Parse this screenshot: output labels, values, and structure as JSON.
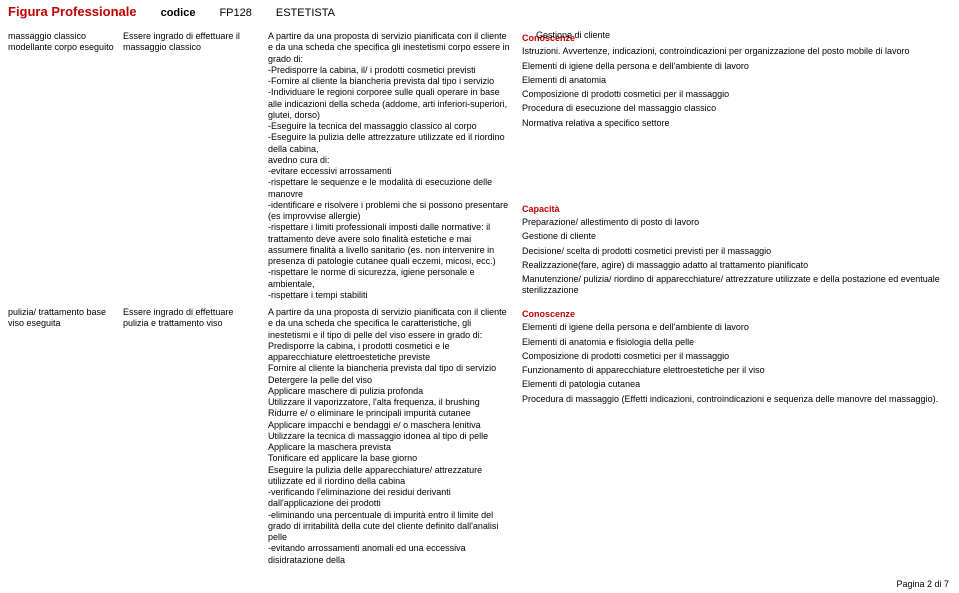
{
  "header": {
    "title": "Figura Professionale",
    "codice_label": "codice",
    "codice_value": "FP128",
    "name": "ESTETISTA"
  },
  "top_right": "Gestione di cliente",
  "rows": [
    {
      "col1": "massaggio classico modellante corpo eseguito",
      "col2": "Essere ingrado di effettuare il massaggio classico",
      "col3": "A partire da una proposta di servizio pianificata con il cliente e da una scheda che specifica gli inestetismi corpo essere in grado di:\n-Predisporre la cabina, il/ i prodotti cosmetici previsti\n-Fornire al cliente la biancheria prevista dal tipo i servizio\n-Individuare le regioni corporee sulle quali operare in base alle indicazioni della scheda (addome, arti inferiori-superiori, glutei, dorso)\n-Eseguire la tecnica del massaggio classico al corpo\n-Eseguire la pulizia delle attrezzature utilizzate ed il riordino della cabina,\navedno cura di:\n-evitare eccessivi arrossamenti\n-rispettare le sequenze e le modalità di esecuzione delle manovre\n-identificare e risolvere i problemi che si possono presentare (es improvvise allergie)\n-rispettare i limiti professionali imposti dalle normative: il trattamento deve avere solo finalità estetiche e mai assumere finalità a livello sanitario (es. non intervenire in presenza di patologie cutanee quali eczemi, micosi, ecc.)\n-rispettare le norme di sicurezza, igiene personale e ambientale,\n-rispettare i tempi stabiliti",
      "col4_blocks": [
        {
          "type": "title",
          "text": "Conoscenze"
        },
        {
          "type": "line",
          "text": "Istruzioni. Avvertenze, indicazioni, controindicazioni per organizzazione del posto mobile di lavoro"
        },
        {
          "type": "line",
          "text": "Elementi di igiene della persona e dell'ambiente di lavoro"
        },
        {
          "type": "line",
          "text": "Elementi di anatomia"
        },
        {
          "type": "line",
          "text": "Composizione di prodotti cosmetici per il massaggio"
        },
        {
          "type": "line",
          "text": "Procedura di esecuzione del massaggio classico"
        },
        {
          "type": "line",
          "text": "Normativa relativa a specifico  settore"
        },
        {
          "type": "spacer"
        },
        {
          "type": "title",
          "text": "Capacità"
        },
        {
          "type": "line",
          "text": "Preparazione/ allestimento di posto di lavoro"
        },
        {
          "type": "line",
          "text": "Gestione di cliente"
        },
        {
          "type": "line",
          "text": "Decisione/ scelta di prodotti cosmetici previsti per il massaggio"
        },
        {
          "type": "line",
          "text": "Realizzazione(fare, agire) di massaggio adatto al trattamento pianificato"
        },
        {
          "type": "line",
          "text": "Manutenzione/ pulizia/ riordino di apparecchiature/ attrezzature utilizzate e della postazione ed eventuale sterilizzazione"
        }
      ]
    },
    {
      "col1": "pulizia/ trattamento base viso eseguita",
      "col2": "Essere ingrado di effettuare pulizia e trattamento viso",
      "col3": "A partire da una proposta di servizio pianificata con il cliente e da una scheda che specifica le caratteristiche, gli inestetismi e il tipo di pelle del viso essere in grado di:\nPredisporre la cabina, i prodotti cosmetici e le apparecchiature elettroestetiche previste\nFornire al cliente la biancheria prevista dal tipo di servizio\nDetergere la pelle del viso\nApplicare maschere di pulizia profonda\nUtilizzare il vaporizzatore, l'alta frequenza, il brushing\nRidurre e/ o eliminare le principali impurità cutanee\nApplicare impacchi e bendaggi e/ o maschera lenitiva\nUtilizzare la tecnica di massaggio idonea al tipo di pelle\nApplicare la maschera prevista\nTonificare ed applicare la base giorno\nEseguire la pulizia delle apparecchiature/ attrezzature utilizzate ed il riordino della cabina\n-verificando l'eliminazione dei residui derivanti dall'applicazione dei prodotti\n-eliminando una percentuale di impurità entro il limite del grado di irritabilità della cute del cliente definito dall'analisi pelle\n-evitando arrossamenti anomali ed una eccessiva disidratazione della",
      "col4_blocks": [
        {
          "type": "title",
          "text": "Conoscenze"
        },
        {
          "type": "line",
          "text": "Elementi di igiene della persona e dell'ambiente di lavoro"
        },
        {
          "type": "line",
          "text": "Elementi di anatomia e fisiologia della pelle"
        },
        {
          "type": "line",
          "text": "Composizione di prodotti cosmetici per il massaggio"
        },
        {
          "type": "line",
          "text": "Funzionamento di apparecchiature elettroestetiche per il viso"
        },
        {
          "type": "line",
          "text": "Elementi di patologia cutanea"
        },
        {
          "type": "line",
          "text": "Procedura di massaggio (Effetti indicazioni, controindicazioni e sequenza delle manovre del massaggio)."
        }
      ]
    }
  ],
  "footer": "Pagina 2 di 7"
}
